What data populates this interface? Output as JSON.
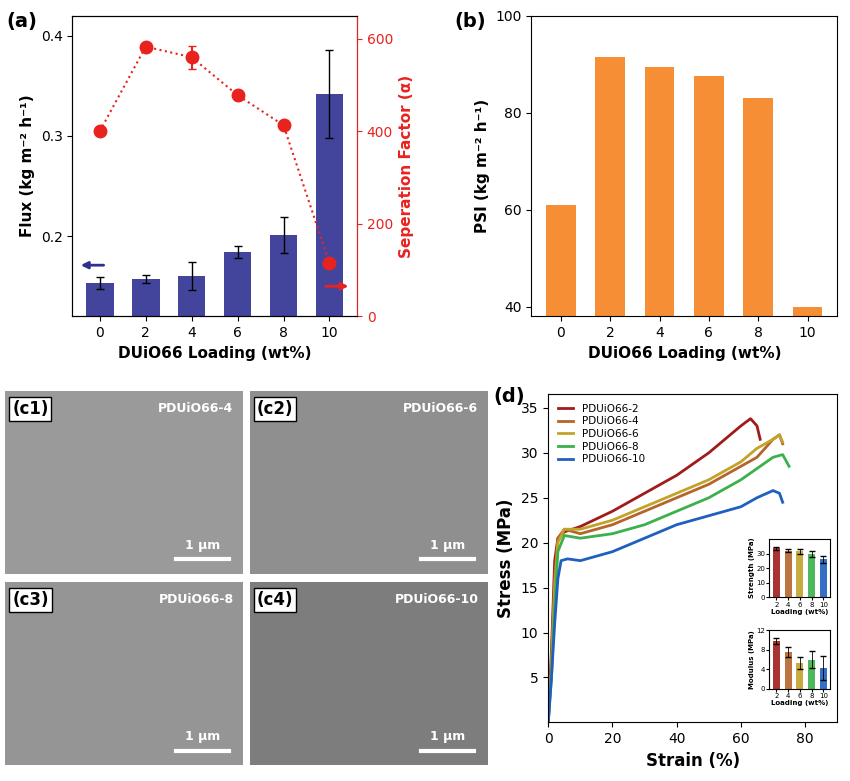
{
  "chart_data": [
    {
      "type": "bar",
      "title": "(a)",
      "categories": [
        "0",
        "2",
        "4",
        "6",
        "8",
        "10"
      ],
      "xlabel": "DUiO66 Loading (wt%)",
      "ylabel": "Flux (kg m⁻² h⁻¹)",
      "ylim": [
        0.12,
        0.42
      ],
      "yticks": [
        0.2,
        0.3,
        0.4
      ],
      "y2label": "Seperation Factor (α)",
      "y2lim": [
        0,
        650
      ],
      "y2ticks": [
        0,
        200,
        400,
        600
      ],
      "series": [
        {
          "type": "bar",
          "color": "#2e3192",
          "values": [
            0.153,
            0.157,
            0.16,
            0.184,
            0.201,
            0.342
          ],
          "error": [
            0.006,
            0.004,
            0.014,
            0.006,
            0.018,
            0.044
          ]
        },
        {
          "type": "line",
          "axis": "y2",
          "color": "#e8231f",
          "marker": "circle",
          "line_style": "dotted",
          "values": [
            400,
            583,
            560,
            478,
            413,
            115
          ],
          "error": [
            5,
            8,
            25,
            10,
            8,
            8
          ]
        }
      ]
    },
    {
      "type": "bar",
      "title": "(b)",
      "categories": [
        "0",
        "2",
        "4",
        "6",
        "8",
        "10"
      ],
      "xlabel": "DUiO66 Loading (wt%)",
      "ylabel": "PSI (kg m⁻² h⁻¹)",
      "ylim": [
        38,
        100
      ],
      "yticks": [
        40,
        60,
        80,
        100
      ],
      "color": "#f5821f",
      "values": [
        61,
        91.5,
        89.5,
        87.5,
        83,
        40
      ]
    },
    {
      "type": "line",
      "title": "(d)",
      "xlabel": "Strain (%)",
      "ylabel": "Stress (MPa)",
      "xlim": [
        0,
        90
      ],
      "xticks": [
        0,
        20,
        40,
        60,
        80
      ],
      "ylim": [
        0,
        36.5
      ],
      "yticks": [
        5,
        10,
        15,
        20,
        25,
        30,
        35
      ],
      "legend": "upper left",
      "series": [
        {
          "name": "PDUiO66-2",
          "color": "#a01c1c",
          "x": [
            0,
            1,
            2,
            3,
            5,
            10,
            20,
            30,
            40,
            50,
            55,
            60,
            63,
            65,
            66
          ],
          "values": [
            0,
            8,
            18,
            20.5,
            21.2,
            21.8,
            23.5,
            25.5,
            27.5,
            30,
            31.5,
            33,
            33.8,
            33,
            31.5
          ]
        },
        {
          "name": "PDUiO66-4",
          "color": "#b5642a",
          "x": [
            0,
            1,
            2,
            3,
            5,
            10,
            20,
            30,
            40,
            50,
            60,
            65,
            70,
            72,
            73
          ],
          "values": [
            0,
            7,
            16,
            20.5,
            21.5,
            21,
            22,
            23.5,
            25,
            26.5,
            28.5,
            29.5,
            31.5,
            32,
            31
          ]
        },
        {
          "name": "PDUiO66-6",
          "color": "#c2a32a",
          "x": [
            0,
            1,
            2,
            3,
            5,
            10,
            20,
            30,
            40,
            50,
            60,
            65,
            70,
            72,
            73
          ],
          "values": [
            0,
            6,
            15,
            20,
            21.5,
            21.5,
            22.5,
            24,
            25.5,
            27,
            29,
            30.5,
            31.5,
            32,
            31.2
          ]
        },
        {
          "name": "PDUiO66-8",
          "color": "#3cb04a",
          "x": [
            0,
            1,
            2,
            3,
            5,
            10,
            20,
            30,
            40,
            50,
            60,
            70,
            73,
            75
          ],
          "values": [
            0,
            5,
            13,
            19,
            20.8,
            20.5,
            21,
            22,
            23.5,
            25,
            27,
            29.5,
            29.8,
            28.5
          ]
        },
        {
          "name": "PDUiO66-10",
          "color": "#1f5fbf",
          "x": [
            0,
            1,
            2,
            3,
            4,
            6,
            10,
            20,
            30,
            40,
            50,
            60,
            65,
            70,
            72,
            73
          ],
          "values": [
            0,
            5,
            11,
            16,
            18,
            18.2,
            18,
            19,
            20.5,
            22,
            23,
            24,
            25,
            25.8,
            25.5,
            24.5
          ]
        }
      ]
    },
    {
      "type": "bar",
      "categories": [
        "2",
        "4",
        "6",
        "8",
        "10"
      ],
      "xlabel": "Loading (wt%)",
      "ylabel": "Strength (MPa)",
      "ylim": [
        0,
        40
      ],
      "yticks": [
        0,
        10,
        20,
        30
      ],
      "colors": [
        "#a01c1c",
        "#b5642a",
        "#c2a32a",
        "#3cb04a",
        "#1f5fbf"
      ],
      "values": [
        33.5,
        32,
        31.5,
        29.5,
        26
      ],
      "error": [
        1,
        1,
        1.5,
        2,
        2.5
      ]
    },
    {
      "type": "bar",
      "categories": [
        "2",
        "4",
        "6",
        "8",
        "10"
      ],
      "xlabel": "Loading (wt%)",
      "ylabel": "Modulus (MPa)",
      "ylim": [
        0,
        12
      ],
      "yticks": [
        0,
        4,
        8,
        12
      ],
      "colors": [
        "#a01c1c",
        "#b5642a",
        "#c2a32a",
        "#3cb04a",
        "#1f5fbf"
      ],
      "values": [
        9.8,
        7.6,
        5.3,
        6,
        4.3
      ],
      "error": [
        0.6,
        1,
        1.3,
        1.8,
        2.5
      ]
    }
  ],
  "images": [
    {
      "label": "(c1)",
      "sample": "PDUiO66-4",
      "scale_bar": "1 μm"
    },
    {
      "label": "(c2)",
      "sample": "PDUiO66-6",
      "scale_bar": "1 μm"
    },
    {
      "label": "(c3)",
      "sample": "PDUiO66-8",
      "scale_bar": "1 μm"
    },
    {
      "label": "(c4)",
      "sample": "PDUiO66-10",
      "scale_bar": "1 μm"
    }
  ]
}
